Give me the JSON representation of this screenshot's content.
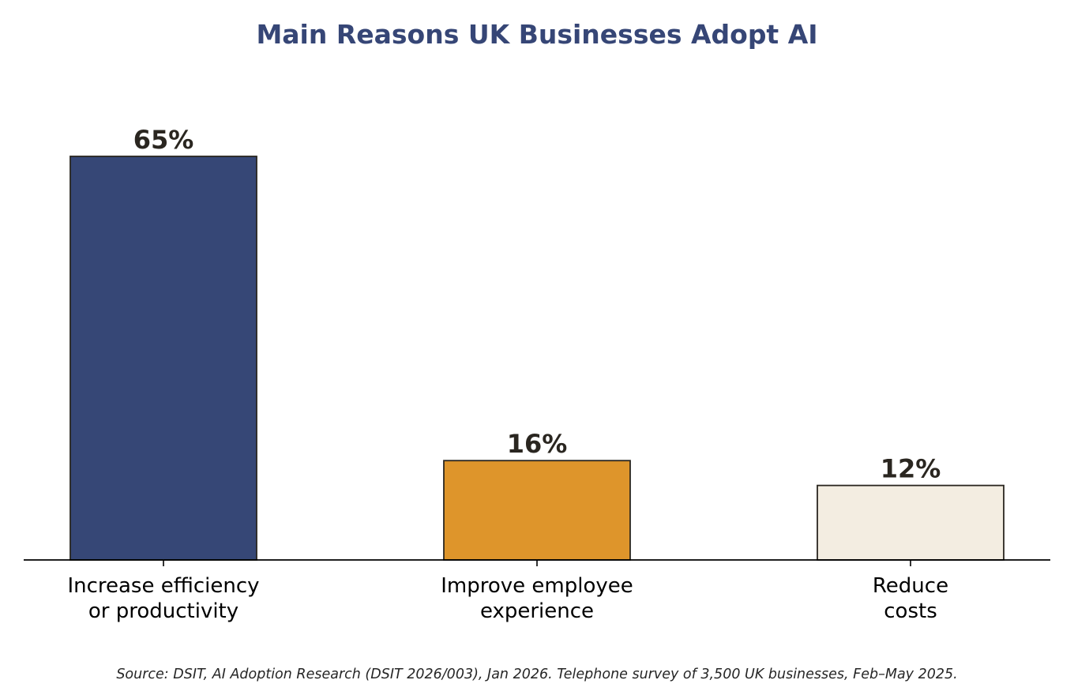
{
  "chart_data": {
    "type": "bar",
    "title": "Main Reasons UK Businesses Adopt AI",
    "categories": [
      [
        "Increase efficiency",
        "or productivity"
      ],
      [
        "Improve employee",
        "experience"
      ],
      [
        "Reduce",
        "costs"
      ]
    ],
    "values": [
      65,
      16,
      12
    ],
    "value_labels": [
      "65%",
      "16%",
      "12%"
    ],
    "colors": [
      "#364776",
      "#de952b",
      "#f3ede1"
    ],
    "ylim": [
      0,
      75
    ],
    "grid": false,
    "xlabel": "",
    "ylabel": ""
  },
  "source": "Source: DSIT, AI Adoption Research (DSIT 2026/003), Jan 2026. Telephone survey of 3,500 UK businesses, Feb–May 2025."
}
